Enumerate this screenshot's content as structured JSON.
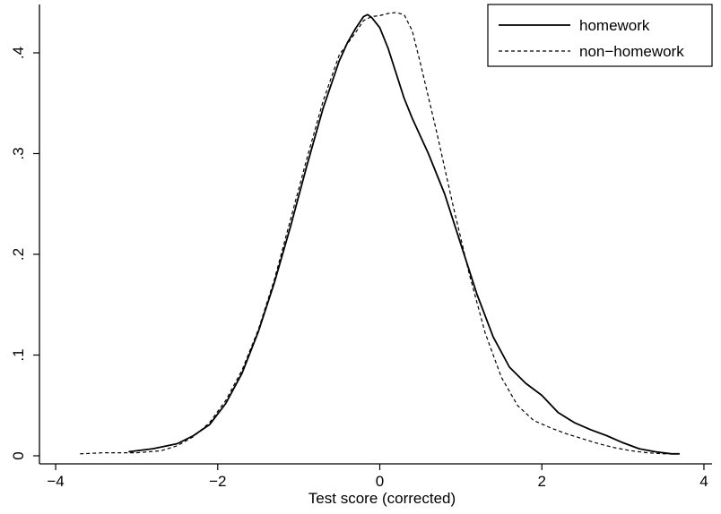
{
  "chart_data": {
    "type": "line",
    "title": "",
    "xlabel": "Test score (corrected)",
    "ylabel": "",
    "xlim": [
      -4.2,
      4.1
    ],
    "ylim": [
      -0.008,
      0.448
    ],
    "xticks": [
      -4,
      -2,
      0,
      2,
      4
    ],
    "xtick_labels": [
      "−4",
      "−2",
      "0",
      "2",
      "4"
    ],
    "yticks": [
      0,
      0.1,
      0.2,
      0.3,
      0.4
    ],
    "ytick_labels": [
      "0",
      ".1",
      ".2",
      ".3",
      ".4"
    ],
    "grid": false,
    "legend_position": "top-right",
    "series": [
      {
        "name": "homework",
        "style": "solid",
        "color": "#000000",
        "x": [
          -3.1,
          -2.8,
          -2.5,
          -2.3,
          -2.1,
          -1.9,
          -1.7,
          -1.5,
          -1.3,
          -1.1,
          -0.9,
          -0.7,
          -0.5,
          -0.4,
          -0.3,
          -0.2,
          -0.15,
          -0.1,
          0.0,
          0.1,
          0.2,
          0.3,
          0.4,
          0.6,
          0.8,
          1.0,
          1.2,
          1.4,
          1.6,
          1.8,
          2.0,
          2.2,
          2.4,
          2.6,
          2.8,
          3.0,
          3.2,
          3.4,
          3.6,
          3.7
        ],
        "y": [
          0.004,
          0.007,
          0.012,
          0.02,
          0.031,
          0.052,
          0.082,
          0.123,
          0.172,
          0.228,
          0.288,
          0.345,
          0.392,
          0.41,
          0.424,
          0.436,
          0.438,
          0.435,
          0.425,
          0.405,
          0.38,
          0.355,
          0.335,
          0.3,
          0.26,
          0.21,
          0.16,
          0.118,
          0.088,
          0.072,
          0.06,
          0.043,
          0.033,
          0.026,
          0.02,
          0.013,
          0.007,
          0.004,
          0.002,
          0.002
        ]
      },
      {
        "name": "non−homework",
        "style": "dashed",
        "color": "#000000",
        "x": [
          -3.7,
          -3.4,
          -3.0,
          -2.7,
          -2.5,
          -2.3,
          -2.1,
          -1.9,
          -1.7,
          -1.5,
          -1.3,
          -1.1,
          -0.9,
          -0.7,
          -0.5,
          -0.3,
          -0.2,
          -0.1,
          0.0,
          0.1,
          0.2,
          0.3,
          0.4,
          0.5,
          0.7,
          0.9,
          1.1,
          1.3,
          1.5,
          1.7,
          1.9,
          2.1,
          2.3,
          2.5,
          2.7,
          2.9,
          3.1,
          3.3,
          3.5,
          3.7
        ],
        "y": [
          0.002,
          0.003,
          0.003,
          0.005,
          0.01,
          0.019,
          0.033,
          0.055,
          0.085,
          0.125,
          0.175,
          0.235,
          0.295,
          0.352,
          0.398,
          0.42,
          0.432,
          0.436,
          0.437,
          0.439,
          0.44,
          0.438,
          0.422,
          0.39,
          0.322,
          0.25,
          0.182,
          0.122,
          0.078,
          0.05,
          0.035,
          0.028,
          0.022,
          0.017,
          0.012,
          0.008,
          0.005,
          0.003,
          0.002,
          0.002
        ]
      }
    ]
  }
}
